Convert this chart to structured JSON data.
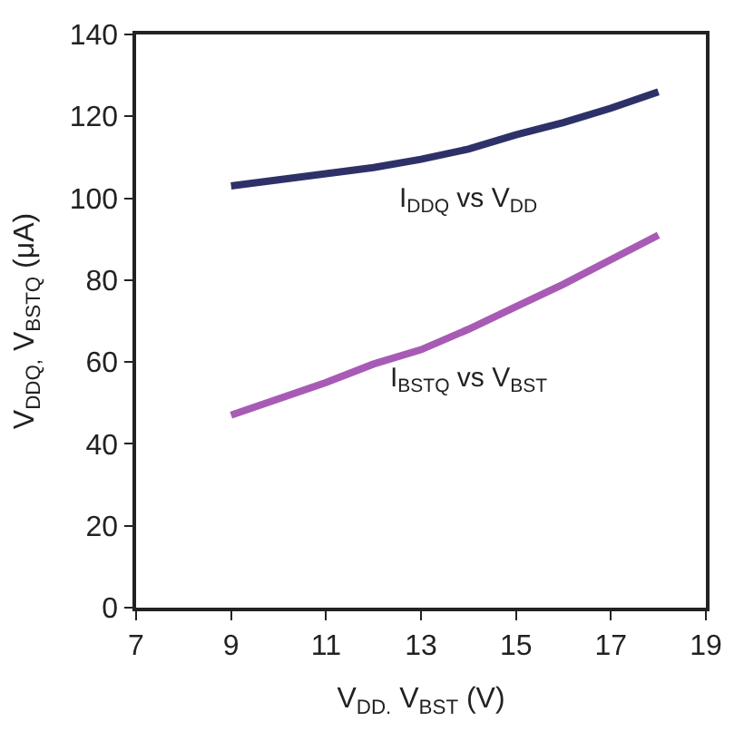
{
  "chart_data": {
    "type": "line",
    "xlabel": "V$_{DD.}$ V$_{BST}$ (V)",
    "ylabel": "V$_{DDQ,}$ V$_{BSTQ}$ (μA)",
    "x": [
      9,
      10,
      11,
      12,
      13,
      14,
      15,
      16,
      17,
      18
    ],
    "series": [
      {
        "name": "I$_{DDQ}$ vs V$_{DD}$",
        "color": "#2e3168",
        "values": [
          103,
          104.5,
          106,
          107.5,
          109.5,
          112,
          115.5,
          118.5,
          122,
          126
        ]
      },
      {
        "name": "I$_{BSTQ}$ vs V$_{BST}$",
        "color": "#a85bb5",
        "values": [
          47,
          51,
          55,
          59.5,
          63,
          68,
          73.5,
          79,
          85,
          91
        ]
      }
    ],
    "xlim": [
      7,
      19
    ],
    "xticks": [
      7,
      9,
      11,
      13,
      15,
      17,
      19
    ],
    "ylim": [
      0,
      140
    ],
    "yticks": [
      0,
      20,
      40,
      60,
      80,
      100,
      120,
      140
    ],
    "legend": false,
    "marker": "none",
    "line_style": "solid"
  }
}
